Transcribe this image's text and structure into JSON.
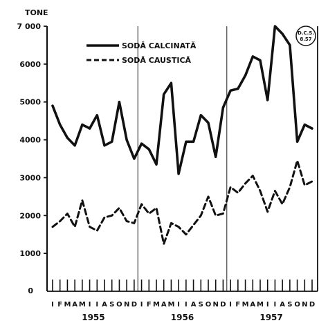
{
  "chart_data": {
    "type": "line",
    "unit_label": "TONE",
    "stamp": "D.C.S. 8.57",
    "ylim": [
      0,
      7000
    ],
    "y_ticks": [
      1000,
      2000,
      3000,
      4000,
      5000,
      6000,
      7000
    ],
    "y_tick_labels": [
      "1000",
      "2000",
      "3000",
      "4000",
      "5000",
      "6000",
      "7 000"
    ],
    "zero_label": "0",
    "month_labels": [
      "I",
      "F",
      "M",
      "A",
      "M",
      "I",
      "I",
      "A",
      "S",
      "O",
      "N",
      "D"
    ],
    "years": [
      "1955",
      "1956",
      "1957"
    ],
    "series": [
      {
        "name": "SODĂ CALCINATĂ",
        "style": "solid",
        "values": [
          4900,
          4400,
          4050,
          3850,
          4400,
          4300,
          4650,
          3850,
          3950,
          5000,
          4000,
          3500,
          3900,
          3750,
          3350,
          5200,
          5500,
          3100,
          3950,
          3950,
          4650,
          4450,
          3550,
          4850,
          5300,
          5350,
          5700,
          6200,
          6100,
          5050,
          7000,
          6800,
          6500,
          3950,
          4400,
          4300
        ]
      },
      {
        "name": "SODĂ CAUSTICĂ",
        "style": "dashed",
        "values": [
          1700,
          1850,
          2050,
          1700,
          2400,
          1700,
          1600,
          1950,
          2000,
          2200,
          1850,
          1800,
          2300,
          2050,
          2200,
          1250,
          1800,
          1700,
          1500,
          1750,
          2000,
          2500,
          2000,
          2050,
          2750,
          2600,
          2850,
          3050,
          2650,
          2100,
          2650,
          2300,
          2750,
          3450,
          2800,
          2900
        ]
      }
    ],
    "legend_position": "top"
  }
}
